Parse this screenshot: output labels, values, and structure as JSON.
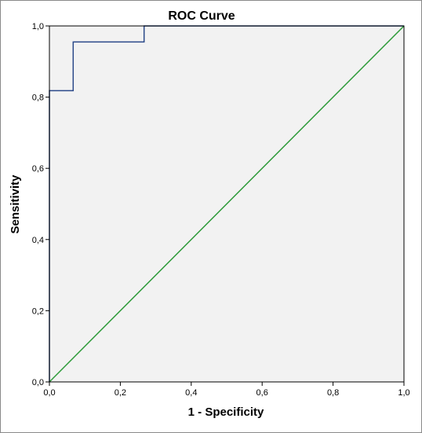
{
  "chart_data": {
    "type": "line",
    "title": "ROC Curve",
    "xlabel": "1 - Specificity",
    "ylabel": "Sensitivity",
    "xlim": [
      0,
      1
    ],
    "ylim": [
      0,
      1
    ],
    "xticks": [
      "0,0",
      "0,2",
      "0,4",
      "0,6",
      "0,8",
      "1,0"
    ],
    "yticks": [
      "0,0",
      "0,2",
      "0,4",
      "0,6",
      "0,8",
      "1,0"
    ],
    "grid": false,
    "colors": {
      "background": "#f2f2f2",
      "roc_curve": "#2b4a8a",
      "reference_line": "#2e9b3a",
      "axes": "#000000"
    },
    "series": [
      {
        "x": [
          0,
          0,
          0.067,
          0.067,
          0.267,
          0.267,
          1
        ],
        "y": [
          0,
          0.818,
          0.818,
          0.955,
          0.955,
          1,
          1
        ]
      },
      {
        "x": [
          0,
          1
        ],
        "y": [
          0,
          1
        ]
      }
    ]
  }
}
